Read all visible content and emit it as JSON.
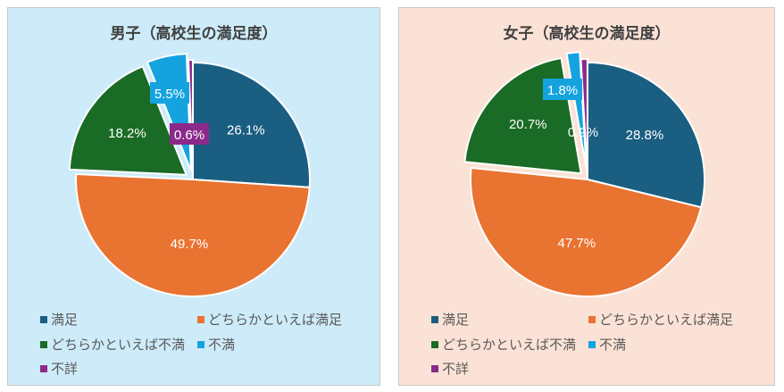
{
  "categories": [
    "満足",
    "どちらかといえば満足",
    "どちらかといえば不満",
    "不満",
    "不詳"
  ],
  "colors": [
    "#1a5e82",
    "#e97331",
    "#1a6b25",
    "#14a3df",
    "#8b2a8a"
  ],
  "chart_data": [
    {
      "type": "pie",
      "title": "男子（高校生の満足度）",
      "categories": [
        "満足",
        "どちらかといえば満足",
        "どちらかといえば不満",
        "不満",
        "不詳"
      ],
      "values": [
        26.1,
        49.7,
        18.2,
        5.5,
        0.6
      ],
      "labels": [
        "26.1%",
        "49.7%",
        "18.2%",
        "5.5%",
        "0.6%"
      ],
      "legend": "bottom"
    },
    {
      "type": "pie",
      "title": "女子（高校生の満足度）",
      "categories": [
        "満足",
        "どちらかといえば満足",
        "どちらかといえば不満",
        "不満",
        "不詳"
      ],
      "values": [
        28.8,
        47.7,
        20.7,
        1.8,
        0.9
      ],
      "labels": [
        "28.8%",
        "47.7%",
        "20.7%",
        "1.8%",
        "0.9%"
      ],
      "legend": "bottom"
    }
  ]
}
